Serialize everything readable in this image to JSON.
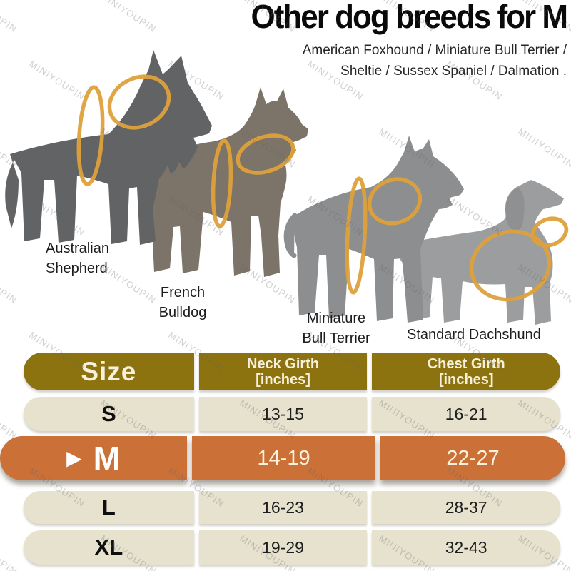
{
  "title": "Other dog breeds for M",
  "subtitle": {
    "line1": "American Foxhound / Miniature Bull Terrier /",
    "line2": "Sheltie / Sussex Spaniel / Dalmation ."
  },
  "watermark": {
    "text": "MINIYOUPIN"
  },
  "dogs": [
    {
      "name": "Australian Shepherd",
      "label_line1": "Australian",
      "label_line2": "Shepherd"
    },
    {
      "name": "French Bulldog",
      "label_line1": "French",
      "label_line2": "Bulldog"
    },
    {
      "name": "Miniature Bull Terrier",
      "label_line1": "Miniature",
      "label_line2": "Bull Terrier"
    },
    {
      "name": "Standard Dachshund",
      "label_line1": "Standard Dachshund",
      "label_line2": ""
    }
  ],
  "size_table": {
    "header": {
      "size": "Size",
      "neck_line1": "Neck Girth",
      "neck_line2": "[inches]",
      "chest_line1": "Chest Girth",
      "chest_line2": "[inches]"
    },
    "rows": [
      {
        "size": "S",
        "neck": "13-15",
        "chest": "16-21",
        "highlighted": false,
        "marker": ""
      },
      {
        "size": "M",
        "neck": "14-19",
        "chest": "22-27",
        "highlighted": true,
        "marker": "▶"
      },
      {
        "size": "L",
        "neck": "16-23",
        "chest": "28-37",
        "highlighted": false,
        "marker": ""
      },
      {
        "size": "XL",
        "neck": "19-29",
        "chest": "32-43",
        "highlighted": false,
        "marker": ""
      }
    ]
  },
  "colors": {
    "header_bg": "#8c7310",
    "row_bg": "#e7e2ce",
    "highlight_bg": "#cb7037",
    "header_text": "#f7f1dc",
    "highlight_text": "#fbf2dd",
    "collar_ring": "#dfa23c",
    "dog_shepherd": "#616365",
    "dog_french_bulldog": "#7c7468",
    "dog_bull_terrier": "#8c8e90",
    "dog_dachshund": "#9b9d9f"
  }
}
